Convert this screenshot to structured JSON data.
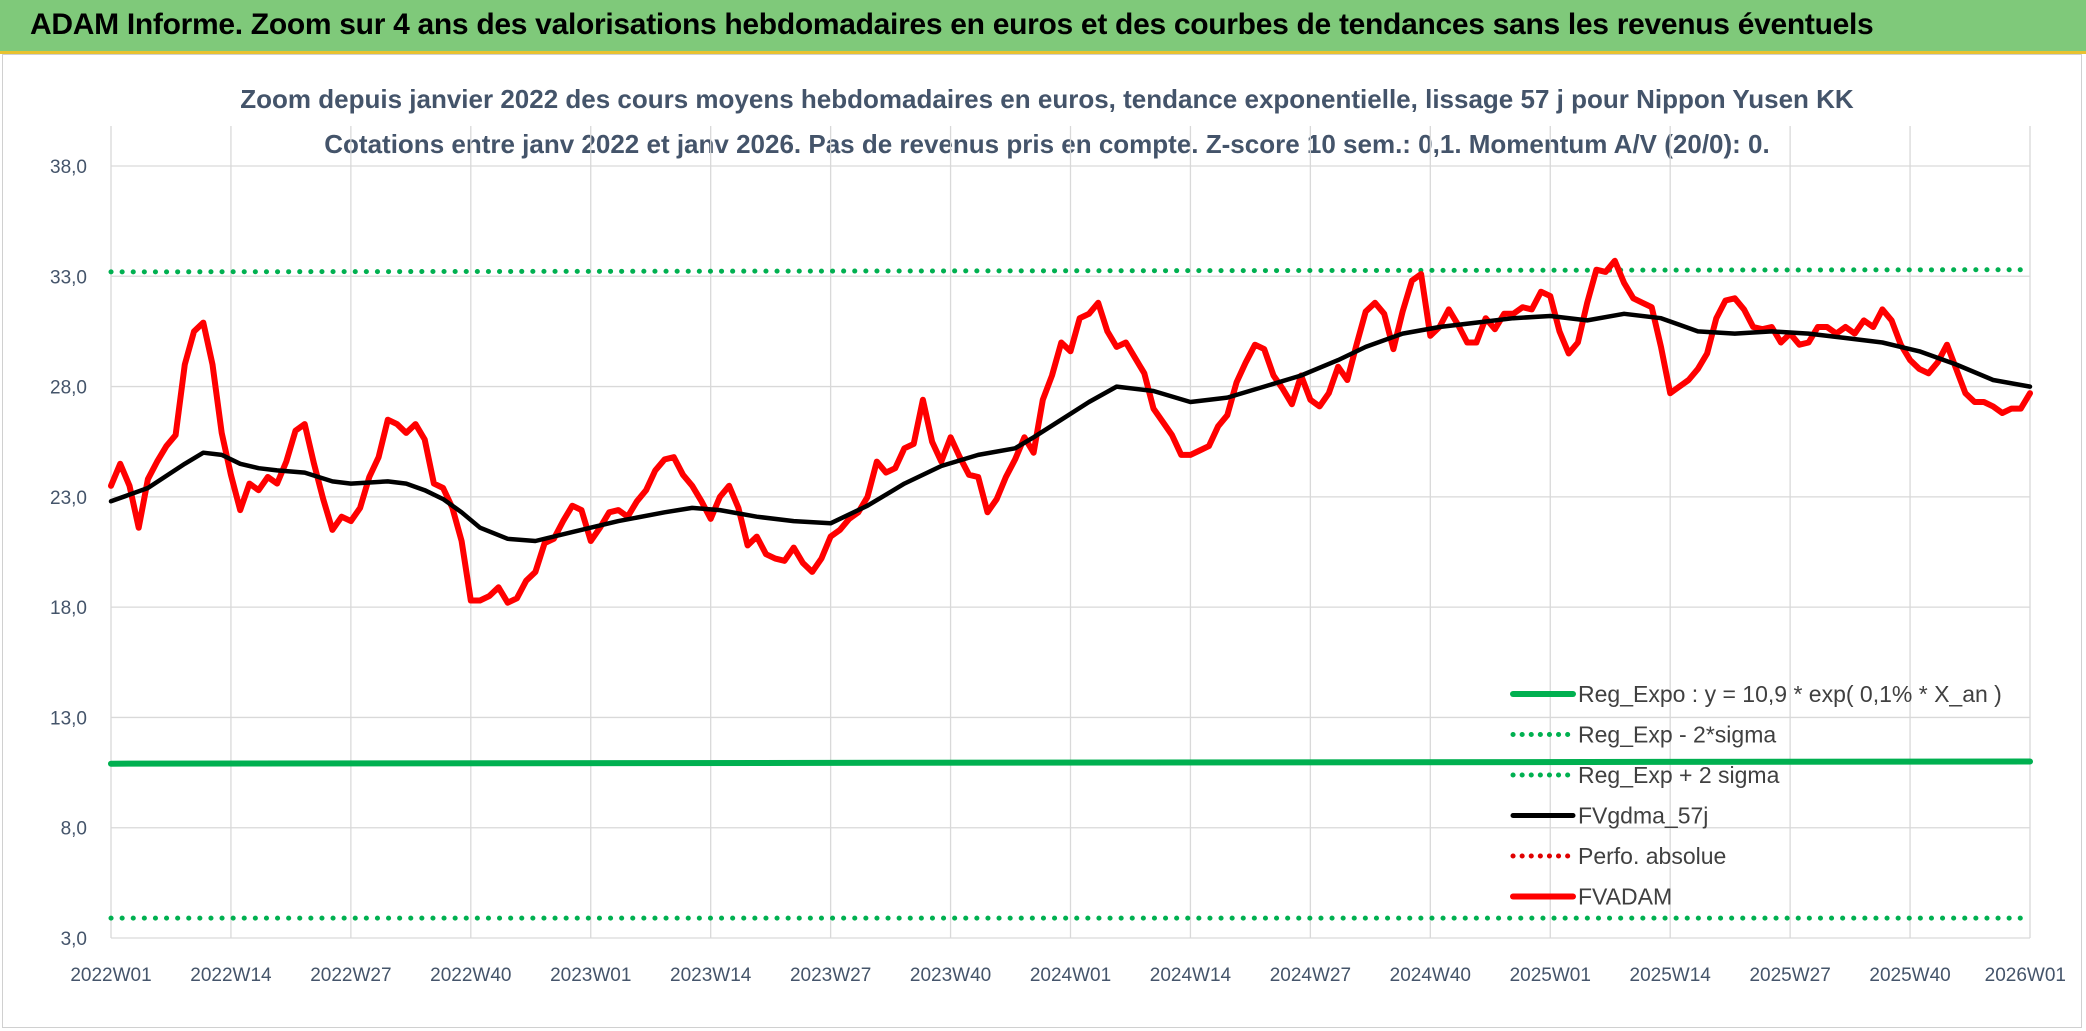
{
  "banner": {
    "title": "ADAM Informe. Zoom sur 4 ans des valorisations hebdomadaires en euros et des courbes de tendances sans les revenus éventuels"
  },
  "chart_data": {
    "type": "line",
    "title": "Zoom depuis janvier 2022 des cours moyens hebdomadaires en euros, tendance exponentielle, lissage 57 j pour Nippon Yusen KK",
    "subtitle": "Cotations entre janv 2022 et janv 2026. Pas de revenus pris en compte. Z-score 10 sem.: 0,1. Momentum A/V (20/0): 0.",
    "xlabel": "",
    "ylabel": "",
    "ylim": [
      3.0,
      38.0
    ],
    "y_ticks": [
      "38,0",
      "33,0",
      "28,0",
      "23,0",
      "18,0",
      "13,0",
      "8,0",
      "3,0"
    ],
    "y_tick_values": [
      38,
      33,
      28,
      23,
      18,
      13,
      8,
      3
    ],
    "x_ticks": [
      "2022W01",
      "2022W14",
      "2022W27",
      "2022W40",
      "2023W01",
      "2023W14",
      "2023W27",
      "2023W40",
      "2024W01",
      "2024W14",
      "2024W27",
      "2024W40",
      "2025W01",
      "2025W14",
      "2025W27",
      "2025W40",
      "2026W01"
    ],
    "x_tick_index": [
      0,
      13,
      26,
      39,
      52,
      65,
      78,
      91,
      104,
      117,
      130,
      143,
      156,
      169,
      182,
      195,
      208
    ],
    "grid": true,
    "legend_position": "bottom-right",
    "colors": {
      "reg_expo": "#00b050",
      "reg_band": "#00b050",
      "fvgdma": "#000000",
      "perfo": "#e00000",
      "fvadam": "#ff0000",
      "grid": "#d9d9d9",
      "axis_text": "#44546a"
    },
    "series": [
      {
        "name": "Reg_Expo : y = 10,9 * exp( 0,1% *  X_an )",
        "style": "solid-thick",
        "color": "#00b050",
        "x": [
          0,
          208
        ],
        "values": [
          10.9,
          11.0
        ]
      },
      {
        "name": "Reg_Exp - 2*sigma",
        "style": "dotted",
        "color": "#00b050",
        "x": [
          0,
          208
        ],
        "values": [
          3.9,
          3.9
        ]
      },
      {
        "name": "Reg_Exp + 2 sigma",
        "style": "dotted",
        "color": "#00b050",
        "x": [
          0,
          208
        ],
        "values": [
          33.2,
          33.3
        ]
      },
      {
        "name": "FVgdma_57j",
        "style": "solid",
        "color": "#000000",
        "x": [
          0,
          4,
          8,
          10,
          12,
          14,
          16,
          18,
          21,
          24,
          26,
          30,
          32,
          34,
          36,
          38,
          40,
          43,
          46,
          50,
          55,
          60,
          63,
          66,
          70,
          74,
          78,
          82,
          86,
          90,
          94,
          98,
          100,
          103,
          106,
          109,
          113,
          117,
          121,
          125,
          129,
          133,
          136,
          140,
          144,
          148,
          152,
          156,
          160,
          164,
          168,
          170,
          172,
          176,
          180,
          184,
          188,
          192,
          196,
          200,
          204,
          208
        ],
        "values": [
          22.8,
          23.4,
          24.5,
          25.0,
          24.9,
          24.5,
          24.3,
          24.2,
          24.1,
          23.7,
          23.6,
          23.7,
          23.6,
          23.3,
          22.9,
          22.3,
          21.6,
          21.1,
          21.0,
          21.4,
          21.9,
          22.3,
          22.5,
          22.4,
          22.1,
          21.9,
          21.8,
          22.6,
          23.6,
          24.4,
          24.9,
          25.2,
          25.7,
          26.5,
          27.3,
          28.0,
          27.8,
          27.3,
          27.5,
          28.0,
          28.5,
          29.2,
          29.8,
          30.4,
          30.7,
          30.9,
          31.1,
          31.2,
          31.0,
          31.3,
          31.1,
          30.8,
          30.5,
          30.4,
          30.5,
          30.4,
          30.2,
          30.0,
          29.6,
          29.0,
          28.3,
          28.0
        ]
      },
      {
        "name": "Perfo. absolue",
        "style": "dotted",
        "color": "#e00000",
        "x": [],
        "values": []
      },
      {
        "name": "FVADAM",
        "style": "solid-thick",
        "color": "#ff0000",
        "x": [
          0,
          1,
          2,
          3,
          4,
          5,
          6,
          7,
          8,
          9,
          10,
          11,
          12,
          13,
          14,
          15,
          16,
          17,
          18,
          19,
          20,
          21,
          22,
          23,
          24,
          25,
          26,
          27,
          28,
          29,
          30,
          31,
          32,
          33,
          34,
          35,
          36,
          37,
          38,
          39,
          40,
          41,
          42,
          43,
          44,
          45,
          46,
          47,
          48,
          49,
          50,
          51,
          52,
          53,
          54,
          55,
          56,
          57,
          58,
          59,
          60,
          61,
          62,
          63,
          64,
          65,
          66,
          67,
          68,
          69,
          70,
          71,
          72,
          73,
          74,
          75,
          76,
          77,
          78,
          79,
          80,
          81,
          82,
          83,
          84,
          85,
          86,
          87,
          88,
          89,
          90,
          91,
          92,
          93,
          94,
          95,
          96,
          97,
          98,
          99,
          100,
          101,
          102,
          103,
          104,
          105,
          106,
          107,
          108,
          109,
          110,
          111,
          112,
          113,
          114,
          115,
          116,
          117,
          118,
          119,
          120,
          121,
          122,
          123,
          124,
          125,
          126,
          127,
          128,
          129,
          130,
          131,
          132,
          133,
          134,
          135,
          136,
          137,
          138,
          139,
          140,
          141,
          142,
          143,
          144,
          145,
          146,
          147,
          148,
          149,
          150,
          151,
          152,
          153,
          154,
          155,
          156,
          157,
          158,
          159,
          160,
          161,
          162,
          163,
          164,
          165,
          166,
          167,
          168,
          169,
          170,
          171,
          172,
          173,
          174,
          175,
          176,
          177,
          178,
          179,
          180,
          181,
          182,
          183,
          184,
          185,
          186,
          187,
          188,
          189,
          190,
          191,
          192,
          193,
          194,
          195,
          196,
          197,
          198,
          199,
          200,
          201,
          202,
          203,
          204,
          205,
          206,
          207,
          208
        ],
        "values": [
          23.5,
          24.5,
          23.5,
          21.6,
          23.8,
          24.6,
          25.3,
          25.8,
          29.0,
          30.5,
          30.9,
          29.0,
          25.9,
          24.0,
          22.4,
          23.6,
          23.3,
          23.9,
          23.6,
          24.6,
          26.0,
          26.3,
          24.5,
          22.9,
          21.5,
          22.1,
          21.9,
          22.5,
          23.9,
          24.8,
          26.5,
          26.3,
          25.9,
          26.3,
          25.6,
          23.6,
          23.4,
          22.5,
          21.0,
          18.3,
          18.3,
          18.5,
          18.9,
          18.2,
          18.4,
          19.2,
          19.6,
          20.9,
          21.1,
          21.9,
          22.6,
          22.4,
          21.0,
          21.6,
          22.3,
          22.4,
          22.1,
          22.8,
          23.3,
          24.2,
          24.7,
          24.8,
          24.0,
          23.5,
          22.8,
          22.0,
          23.0,
          23.5,
          22.5,
          20.8,
          21.2,
          20.4,
          20.2,
          20.1,
          20.7,
          20.0,
          19.6,
          20.2,
          21.2,
          21.5,
          22.0,
          22.3,
          23.0,
          24.6,
          24.1,
          24.3,
          25.2,
          25.4,
          27.4,
          25.5,
          24.6,
          25.7,
          24.8,
          24.0,
          23.9,
          22.3,
          22.9,
          23.9,
          24.7,
          25.7,
          25.0,
          27.4,
          28.5,
          30.0,
          29.6,
          31.1,
          31.3,
          31.8,
          30.5,
          29.8,
          30.0,
          29.3,
          28.6,
          27.0,
          26.4,
          25.8,
          24.9,
          24.9,
          25.1,
          25.3,
          26.2,
          26.7,
          28.2,
          29.1,
          29.9,
          29.7,
          28.5,
          27.9,
          27.2,
          28.5,
          27.4,
          27.1,
          27.7,
          28.9,
          28.3,
          29.9,
          31.4,
          31.8,
          31.3,
          29.7,
          31.4,
          32.8,
          33.1,
          30.3,
          30.7,
          31.5,
          30.8,
          30.0,
          30.0,
          31.1,
          30.6,
          31.3,
          31.3,
          31.6,
          31.5,
          32.3,
          32.1,
          30.5,
          29.5,
          30.0,
          31.8,
          33.3,
          33.2,
          33.7,
          32.7,
          32.0,
          31.8,
          31.6,
          29.8,
          27.7,
          28.0,
          28.3,
          28.8,
          29.5,
          31.1,
          31.9,
          32.0,
          31.5,
          30.7,
          30.6,
          30.7,
          30.0,
          30.4,
          29.9,
          30.0,
          30.7,
          30.7,
          30.4,
          30.7,
          30.4,
          31.0,
          30.7,
          31.5,
          31.0,
          29.9,
          29.2,
          28.8,
          28.6,
          29.1,
          29.9,
          28.8,
          27.7,
          27.3,
          27.3,
          27.1,
          26.8,
          27.0,
          27.0,
          27.7
        ]
      }
    ]
  }
}
